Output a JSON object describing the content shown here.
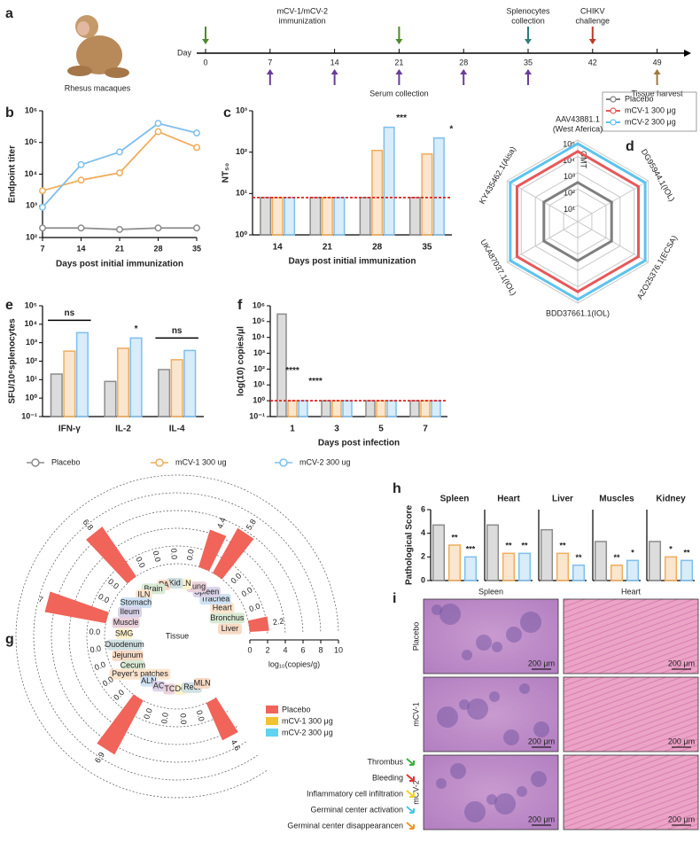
{
  "panel_labels": [
    "a",
    "b",
    "c",
    "d",
    "e",
    "f",
    "g",
    "h",
    "i"
  ],
  "timeline": {
    "species": "Rhesus macaques",
    "axis_label": "Day",
    "days": [
      0,
      7,
      14,
      21,
      28,
      35,
      42,
      49
    ],
    "events": [
      {
        "text": [
          "mCV-1/mCV-2",
          "immunization"
        ],
        "days": [
          0,
          21
        ],
        "color": "#4e8a2e",
        "side": "top"
      },
      {
        "text": [
          "Serum collection"
        ],
        "days": [
          7,
          14,
          21,
          28,
          35
        ],
        "color": "#6a3d9a",
        "side": "bottom"
      },
      {
        "text": [
          "Splenocytes",
          "collection"
        ],
        "days": [
          35
        ],
        "color": "#2e7d7a",
        "side": "top"
      },
      {
        "text": [
          "CHIKV",
          "challenge"
        ],
        "days": [
          42
        ],
        "color": "#c0392b",
        "side": "top"
      },
      {
        "text": [
          "Tissue harvest"
        ],
        "days": [
          49
        ],
        "color": "#9c7a3c",
        "side": "bottom"
      }
    ]
  },
  "chart_data": [
    {
      "type": "line",
      "log": true,
      "xlabel": "Days post initial immunization",
      "ylabel": "Endpoint titer",
      "x": [
        7,
        14,
        21,
        28,
        35
      ],
      "xlim": [
        7,
        35
      ],
      "xticks": [
        7,
        14,
        21,
        28,
        35
      ],
      "ylim": [
        100,
        1000000
      ],
      "yticks": [
        {
          "value": 100,
          "label": "10²"
        },
        {
          "value": 1000,
          "label": "10³"
        },
        {
          "value": 10000,
          "label": "10⁴"
        },
        {
          "value": 100000,
          "label": "10⁵"
        },
        {
          "value": 1000000,
          "label": "10⁶"
        }
      ],
      "series": [
        {
          "color": "#8c8c8c",
          "values": [
            200,
            200,
            180,
            200,
            200
          ]
        },
        {
          "color": "#f0ad5c",
          "values": [
            3000,
            6500,
            11000,
            220000,
            70000
          ]
        },
        {
          "color": "#7fbfec",
          "values": [
            900,
            20000,
            50000,
            400000,
            200000
          ]
        }
      ]
    },
    {
      "type": "bar",
      "log": true,
      "xlabel": "Days post initial immunization",
      "ylabel": "NT₅₀",
      "categories": [
        "14",
        "21",
        "28",
        "35"
      ],
      "ylim": [
        1,
        1000
      ],
      "yticks": [
        {
          "value": 1,
          "label": "10⁰"
        },
        {
          "value": 10,
          "label": "10¹"
        },
        {
          "value": 100,
          "label": "10²"
        },
        {
          "value": 1000,
          "label": "10³"
        }
      ],
      "threshold": 8,
      "series": [
        {
          "color": "#8c8c8c",
          "values": [
            8,
            8,
            8,
            8
          ]
        },
        {
          "color": "#f0ad5c",
          "values": [
            8,
            8,
            110,
            90
          ]
        },
        {
          "color": "#7fbfec",
          "values": [
            8,
            8,
            400,
            220
          ],
          "annotations": [
            null,
            null,
            "***",
            "*"
          ]
        }
      ]
    },
    {
      "type": "radar",
      "rlabel": "GMT",
      "axes": [
        [
          "AAV43881.1",
          "(West Aferica)"
        ],
        [
          "DG95944.1(IOL)"
        ],
        [
          "AZO25376.1(ECSA)"
        ],
        [
          "BDD37661.1(IOL)"
        ],
        [
          "UKA87037.1(IOL)"
        ],
        [
          "KY435462.1(Aisa)"
        ]
      ],
      "rlim": [
        1,
        100000
      ],
      "rticks": [
        {
          "value": 10,
          "label": "10¹"
        },
        {
          "value": 100,
          "label": "10²"
        },
        {
          "value": 1000,
          "label": "10³"
        },
        {
          "value": 10000,
          "label": "10⁴"
        },
        {
          "value": 100000,
          "label": "10⁵"
        }
      ],
      "series": [
        {
          "name": "Placebo",
          "color": "#7f7f7f",
          "values": [
            250,
            250,
            250,
            250,
            250,
            250
          ]
        },
        {
          "name": "mCV-1 300 μg",
          "color": "#e8585a",
          "values": [
            20000,
            20000,
            20000,
            20000,
            20000,
            20000
          ]
        },
        {
          "name": "mCV-2 300 μg",
          "color": "#5ec3ee",
          "values": [
            60000,
            60000,
            60000,
            60000,
            60000,
            60000
          ]
        }
      ]
    },
    {
      "type": "bar",
      "log": true,
      "ylabel": "SFU/10⁶splenocytes",
      "legend": true,
      "categories": [
        "IFN-γ",
        "IL-2",
        "IL-4"
      ],
      "ylim": [
        0.1,
        100000
      ],
      "yticks": [
        {
          "value": 0.1,
          "label": "10⁻¹"
        },
        {
          "value": 1,
          "label": "10⁰"
        },
        {
          "value": 10,
          "label": "10¹"
        },
        {
          "value": 100,
          "label": "10²"
        },
        {
          "value": 1000,
          "label": "10³"
        },
        {
          "value": 10000,
          "label": "10⁴"
        },
        {
          "value": 100000,
          "label": "10⁵"
        }
      ],
      "group_annotations": [
        "ns",
        null,
        "ns"
      ],
      "series": [
        {
          "name": "Placebo",
          "color": "#8c8c8c",
          "values": [
            20,
            8,
            35
          ]
        },
        {
          "name": "mCV-1 300 ug",
          "color": "#f0ad5c",
          "values": [
            350,
            500,
            120
          ]
        },
        {
          "name": "mCV-2 300 ug",
          "color": "#7fbfec",
          "values": [
            3500,
            1800,
            380
          ],
          "annotations": [
            null,
            "*",
            null
          ]
        }
      ]
    },
    {
      "type": "bar",
      "log": true,
      "xlabel": "Days post infection",
      "ylabel": "log(10) copies/μl",
      "categories": [
        "1",
        "3",
        "5",
        "7"
      ],
      "ylim": [
        0.1,
        1000000
      ],
      "yticks": [
        {
          "value": 0.1,
          "label": "10⁻¹"
        },
        {
          "value": 1,
          "label": "10⁰"
        },
        {
          "value": 10,
          "label": "10¹"
        },
        {
          "value": 100,
          "label": "10²"
        },
        {
          "value": 1000,
          "label": "10³"
        },
        {
          "value": 10000,
          "label": "10⁴"
        },
        {
          "value": 100000,
          "label": "10⁵"
        },
        {
          "value": 1000000,
          "label": "10⁶"
        }
      ],
      "threshold": 1,
      "series": [
        {
          "color": "#8c8c8c",
          "values": [
            300000,
            1,
            1,
            1
          ]
        },
        {
          "color": "#f0ad5c",
          "values": [
            1,
            1,
            1,
            1
          ],
          "annotations": [
            "****",
            null,
            null,
            null
          ]
        },
        {
          "color": "#7fbfec",
          "values": [
            1,
            1,
            1,
            1
          ],
          "annotations": [
            "****",
            null,
            null,
            null
          ]
        }
      ]
    },
    {
      "type": "bar",
      "title": "Spleen",
      "ylabel": "Pathological Score",
      "ylim": [
        0,
        6
      ],
      "yticks": [
        0,
        2,
        4,
        6
      ],
      "values": [
        4.7,
        3,
        2
      ],
      "colors": [
        "#8c8c8c",
        "#f0ad5c",
        "#7fbfec"
      ],
      "annotations": [
        null,
        "**",
        "***"
      ]
    },
    {
      "type": "bar",
      "title": "Heart",
      "ylim": [
        0,
        6
      ],
      "values": [
        4.7,
        2.3,
        2.3
      ],
      "colors": [
        "#8c8c8c",
        "#f0ad5c",
        "#7fbfec"
      ],
      "annotations": [
        null,
        "**",
        "**"
      ]
    },
    {
      "type": "bar",
      "title": "Liver",
      "ylim": [
        0,
        6
      ],
      "values": [
        4.3,
        2.3,
        1.3
      ],
      "colors": [
        "#8c8c8c",
        "#f0ad5c",
        "#7fbfec"
      ],
      "annotations": [
        null,
        "**",
        "**"
      ]
    },
    {
      "type": "bar",
      "title": "Muscles",
      "ylim": [
        0,
        6
      ],
      "values": [
        3.3,
        1.3,
        1.7
      ],
      "colors": [
        "#8c8c8c",
        "#f0ad5c",
        "#7fbfec"
      ],
      "annotations": [
        null,
        "**",
        "*"
      ]
    },
    {
      "type": "bar",
      "title": "Kidney",
      "ylim": [
        0,
        6
      ],
      "values": [
        3.3,
        2,
        1.7
      ],
      "colors": [
        "#8c8c8c",
        "#f0ad5c",
        "#7fbfec"
      ],
      "annotations": [
        null,
        "*",
        "**"
      ]
    }
  ],
  "tissue_chart": {
    "center_label": "Tissue",
    "axis_label": "log₁₀(copies/g)",
    "xlim": [
      0,
      10
    ],
    "xticks": [
      0,
      2,
      4,
      6,
      8,
      10
    ],
    "tissues": [
      "Liver",
      "Bronchus",
      "Heart",
      "Trachea",
      "Spleen",
      "Lung",
      "LN",
      "Kid",
      "PA",
      "Brain",
      "ILN",
      "Stomach",
      "Ileum",
      "Muscle",
      "SMG",
      "Duodenum",
      "Jejunum",
      "Cecum",
      "Peyer's patches",
      "ALN",
      "AC",
      "TC",
      "DC",
      "Rect",
      "MLN"
    ],
    "series": [
      {
        "name": "Placebo",
        "color": "#f0645a",
        "values": [
          2.2,
          0,
          0,
          0,
          5.8,
          4.4,
          0,
          0,
          0,
          0,
          6.8,
          0,
          0,
          7,
          0,
          0,
          0,
          0,
          0,
          6.9,
          0,
          0,
          0,
          0,
          4.6
        ],
        "value_labels": [
          "2.2",
          "0.0",
          "0.0",
          "0.0",
          "5.8",
          "4.4",
          "0.0",
          "0.0",
          "0.0",
          "0.0",
          "6.8",
          "0.0",
          "0.0",
          "7",
          "0.0",
          "0.0",
          "0.0",
          "0.0",
          "0.0",
          "6.9",
          "0.0",
          "0.0",
          "0.0",
          "0.0",
          "4.6"
        ]
      }
    ],
    "legend": [
      {
        "name": "mCV-1 300 μg",
        "color": "#f2c230"
      },
      {
        "name": "mCV-2 300 μg",
        "color": "#5fd3f0"
      }
    ]
  },
  "histology": {
    "columns": [
      "Spleen",
      "Heart"
    ],
    "rows": [
      "Placebo",
      "mCV-1",
      "mCV-2"
    ],
    "scale_bar": "200 μm",
    "legend": [
      {
        "text": "Thrombus",
        "color": "#3cb043"
      },
      {
        "text": "Bleeding",
        "color": "#e8322c"
      },
      {
        "text": "Inflammatory cell infiltration",
        "color": "#f2d21b"
      },
      {
        "text": "Germinal center activation",
        "color": "#45c8e8"
      },
      {
        "text": "Germinal center disappearancen",
        "color": "#f0962a"
      }
    ]
  }
}
